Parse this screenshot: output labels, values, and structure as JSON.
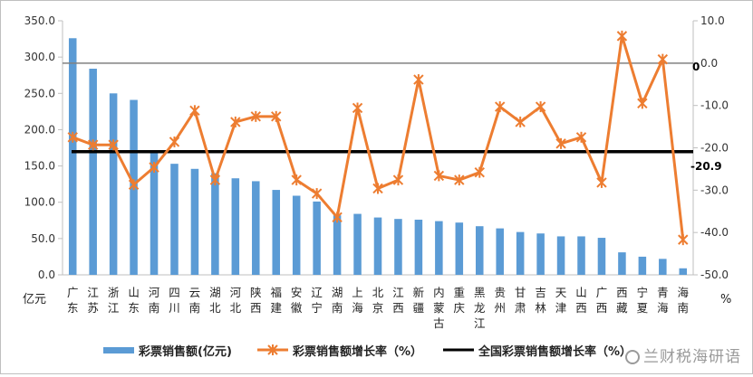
{
  "chart_data": {
    "type": "bar",
    "categories": [
      "广东",
      "江苏",
      "浙江",
      "山东",
      "河南",
      "四川",
      "云南",
      "湖北",
      "河北",
      "陕西",
      "福建",
      "安徽",
      "辽宁",
      "湖南",
      "上海",
      "北京",
      "江西",
      "新疆",
      "内蒙古",
      "重庆",
      "黑龙江",
      "贵州",
      "甘肃",
      "吉林",
      "天津",
      "山西",
      "广西",
      "西藏",
      "宁夏",
      "青海",
      "海南"
    ],
    "left_unit": "亿元",
    "right_unit": "%",
    "left_ylim": [
      0,
      350
    ],
    "left_ticks": [
      "0.0",
      "50.0",
      "100.0",
      "150.0",
      "200.0",
      "250.0",
      "300.0",
      "350.0"
    ],
    "right_ylim": [
      -50,
      10
    ],
    "right_ticks": [
      "10.0",
      "0.0",
      "-10.0",
      "-20.0",
      "-30.0",
      "-40.0",
      "-50.0"
    ],
    "series": [
      {
        "name": "彩票销售额(亿元)",
        "type": "bar",
        "axis": "left",
        "color": "#5b9bd5",
        "values": [
          326,
          284,
          250,
          241,
          168,
          153,
          146,
          140,
          133,
          129,
          117,
          109,
          101,
          82,
          84,
          79,
          77,
          76,
          74,
          72,
          67,
          64,
          59,
          57,
          53,
          53,
          51,
          31,
          25,
          22,
          9
        ]
      },
      {
        "name": "彩票销售额增长率（%）",
        "type": "line",
        "axis": "right",
        "color": "#ed7d31",
        "marker": "x-star",
        "values": [
          -17.5,
          -19.3,
          -19.3,
          -28.7,
          -24.6,
          -18.6,
          -11.2,
          -27.6,
          -13.9,
          -12.6,
          -12.6,
          -27.6,
          -30.8,
          -36.4,
          -10.6,
          -29.6,
          -27.6,
          -3.9,
          -26.6,
          -27.6,
          -25.8,
          -10.3,
          -13.9,
          -10.3,
          -19.0,
          -17.5,
          -28.2,
          6.4,
          -9.5,
          0.9,
          -41.7
        ]
      },
      {
        "name": "全国彩票销售额增长率（%）",
        "type": "line",
        "axis": "right",
        "color": "#000000",
        "value": -20.9
      }
    ],
    "annotations": {
      "zero_label": "0",
      "national_label": "-20.9"
    },
    "legend_position": "bottom",
    "grid": false
  },
  "watermark": {
    "text": "兰财税海研语"
  }
}
